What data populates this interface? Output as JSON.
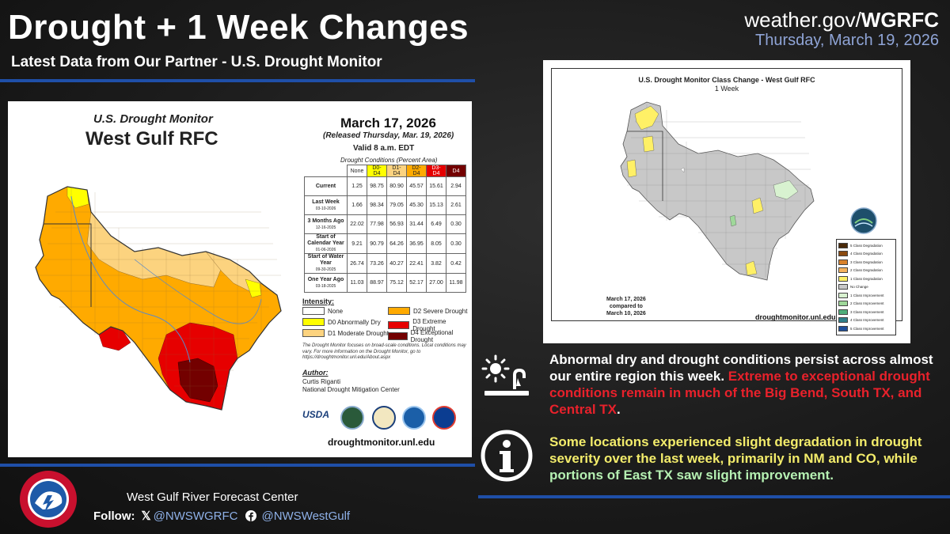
{
  "header": {
    "title": "Drought + 1 Week Changes",
    "subtitle": "Latest Data from Our Partner - U.S. Drought Monitor",
    "site_prefix": "weather.gov/",
    "site_bold": "WGRFC",
    "date": "Thursday, March 19, 2026"
  },
  "left_map": {
    "title_line1": "U.S. Drought Monitor",
    "title_line2": "West Gulf RFC",
    "map_date": "March 17, 2026",
    "released": "(Released Thursday, Mar. 19, 2026)",
    "valid": "Valid 8 a.m. EDT",
    "conditions_header": "Drought Conditions (Percent Area)",
    "table": {
      "columns": [
        "None",
        "D0-D4",
        "D1-D4",
        "D2-D4",
        "D3-D4",
        "D4"
      ],
      "rows": [
        {
          "label": "Current",
          "sub": "",
          "values": [
            "1.25",
            "98.75",
            "80.90",
            "45.57",
            "15.61",
            "2.94"
          ]
        },
        {
          "label": "Last Week",
          "sub": "03-10-2026",
          "values": [
            "1.66",
            "98.34",
            "79.05",
            "45.30",
            "15.13",
            "2.61"
          ]
        },
        {
          "label": "3 Months Ago",
          "sub": "12-16-2025",
          "values": [
            "22.02",
            "77.98",
            "56.93",
            "31.44",
            "6.49",
            "0.30"
          ]
        },
        {
          "label": "Start of Calendar Year",
          "sub": "01-06-2026",
          "values": [
            "9.21",
            "90.79",
            "64.26",
            "36.95",
            "8.05",
            "0.30"
          ]
        },
        {
          "label": "Start of Water Year",
          "sub": "09-30-2025",
          "values": [
            "26.74",
            "73.26",
            "40.27",
            "22.41",
            "3.82",
            "0.42"
          ]
        },
        {
          "label": "One Year Ago",
          "sub": "03-18-2025",
          "values": [
            "11.03",
            "88.97",
            "75.12",
            "52.17",
            "27.00",
            "11.98"
          ]
        }
      ]
    },
    "intensity_label": "Intensity:",
    "legend": [
      {
        "label": "None",
        "color": "#ffffff"
      },
      {
        "label": "D0 Abnormally Dry",
        "color": "#ffff00"
      },
      {
        "label": "D1 Moderate Drought",
        "color": "#fcd37f"
      },
      {
        "label": "D2 Severe Drought",
        "color": "#ffaa00"
      },
      {
        "label": "D3 Extreme Drought",
        "color": "#e60000"
      },
      {
        "label": "D4 Exceptional Drought",
        "color": "#730000"
      }
    ],
    "note": "The Drought Monitor focuses on broad-scale conditions. Local conditions may vary. For more information on the Drought Monitor, go to https://droughtmonitor.unl.edu/About.aspx",
    "author_label": "Author:",
    "author_name": "Curtis Riganti",
    "author_org": "National Drought Mitigation Center",
    "usda": "USDA",
    "url": "droughtmonitor.unl.edu"
  },
  "right_map": {
    "title": "U.S. Drought Monitor Class Change - West Gulf RFC",
    "subtitle": "1 Week",
    "compare_line1": "March 17, 2026",
    "compare_line2": "compared to",
    "compare_line3": "March 10, 2026",
    "url": "droughtmonitor.unl.edu",
    "legend": [
      {
        "label": "5 Class Degradation",
        "color": "#4a2a0a"
      },
      {
        "label": "4 Class Degradation",
        "color": "#8a4a10"
      },
      {
        "label": "3 Class Degradation",
        "color": "#d9822b"
      },
      {
        "label": "2 Class Degradation",
        "color": "#f5b25c"
      },
      {
        "label": "1 Class Degradation",
        "color": "#fff066"
      },
      {
        "label": "No Change",
        "color": "#c8c8c8"
      },
      {
        "label": "1 Class Improvement",
        "color": "#d8f2d0"
      },
      {
        "label": "2 Class Improvement",
        "color": "#9fd89a"
      },
      {
        "label": "3 Class Improvement",
        "color": "#4fae7a"
      },
      {
        "label": "4 Class Improvement",
        "color": "#2f7f8a"
      },
      {
        "label": "5 Class Improvement",
        "color": "#1f4f9a"
      }
    ]
  },
  "summary": {
    "p1_normal": "Abnormal dry and drought conditions persist across almost our entire region this week. ",
    "p1_red": "Extreme to exceptional drought conditions remain in much of the Big Bend, South TX, and Central TX",
    "p1_end": ".",
    "p2_yellow": "Some locations experienced slight degradation in drought severity over the last week, primarily in NM and CO, while ",
    "p2_green": "portions of East TX saw slight improvement."
  },
  "footer": {
    "center_name": "West Gulf River Forecast Center",
    "follow_label": "Follow:",
    "x_handle": "@NWSWGRFC",
    "fb_handle": "@NWSWestGulf"
  }
}
